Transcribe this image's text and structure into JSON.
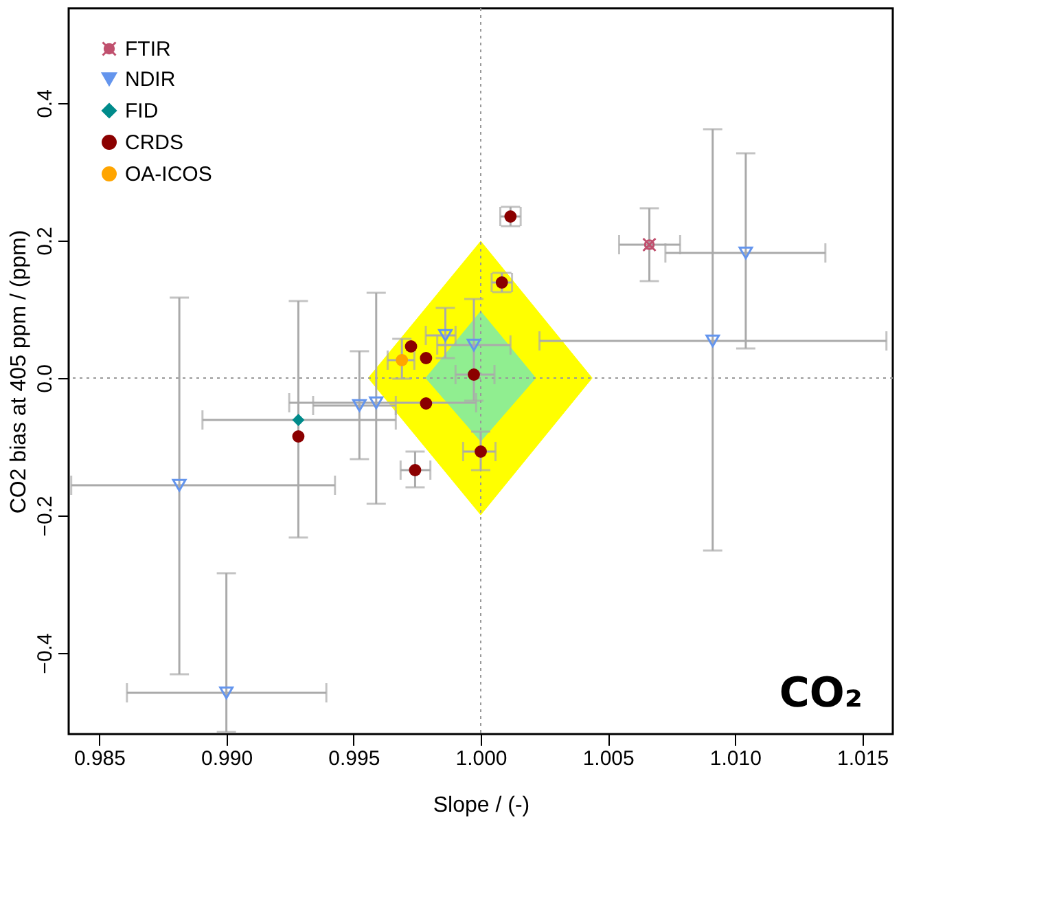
{
  "chart_data": {
    "type": "scatter",
    "xlabel": "Slope / (-)",
    "ylabel": "CO2 bias at 405 ppm / (ppm)",
    "xlim": [
      0.9838,
      1.0162
    ],
    "ylim": [
      -0.518,
      0.538
    ],
    "xticks": [
      0.985,
      {
        "value": 0.99,
        "label": "0.990"
      },
      0.995,
      {
        "value": 1.0,
        "label": "1.000"
      },
      1.005,
      {
        "value": 1.01,
        "label": "1.010"
      },
      1.015
    ],
    "yticks": [
      -0.4,
      -0.2,
      {
        "value": 0,
        "label": "0.0"
      },
      0.2,
      0.4
    ],
    "legend": "top left",
    "grid": false,
    "ref_lines": [
      {
        "axis": "x",
        "value": 1.0,
        "line_style": "dotted",
        "color": "#999999"
      },
      {
        "axis": "y",
        "value": 0.0,
        "line_style": "dotted",
        "color": "#999999"
      }
    ],
    "annotations": [
      "CO₂"
    ],
    "series": [
      {
        "type": "area",
        "color": "#ffff00",
        "x": [
          0.99558,
          1.0,
          1.00438,
          1.0,
          0.99558
        ],
        "values": [
          0,
          0.199,
          0,
          -0.199,
          0
        ]
      },
      {
        "type": "area",
        "color": "#90ee90",
        "x": [
          0.99784,
          1.0,
          1.00216,
          1.0,
          0.99784
        ],
        "values": [
          0,
          0.097,
          0,
          -0.092,
          0
        ]
      },
      {
        "name": "FTIR",
        "color": "#c0506e",
        "marker": "cross",
        "x": [
          1.00663
        ],
        "values": [
          0.194
        ],
        "xerrors": [
          [
            1.00544,
            1.00784
          ]
        ],
        "errors": [
          [
            0.141,
            0.247
          ]
        ]
      },
      {
        "name": "NDIR",
        "color": "#6495ed",
        "marker": "triangle",
        "x": [
          1.01042,
          1.00912,
          0.98815,
          0.99,
          0.99523,
          0.99589,
          0.99861,
          0.99973
        ],
        "values": [
          0.182,
          0.054,
          -0.156,
          -0.458,
          -0.04,
          -0.036,
          0.062,
          0.048
        ],
        "xerrors": [
          [
            1.00726,
            1.01355
          ],
          [
            1.00231,
            1.01595
          ],
          [
            0.9839,
            0.99427
          ],
          [
            0.98609,
            0.99393
          ],
          [
            0.99341,
            0.99666
          ],
          [
            0.99247,
            0.99982
          ],
          [
            0.99784,
            0.99901
          ],
          [
            0.99829,
            1.00117
          ]
        ],
        "errors": [
          [
            0.043,
            0.327
          ],
          [
            -0.251,
            0.362
          ],
          [
            -0.431,
            0.117
          ],
          [
            -0.515,
            -0.284
          ],
          [
            -0.118,
            0.039
          ],
          [
            -0.183,
            0.124
          ],
          [
            0.029,
            0.102
          ],
          [
            -0.033,
            0.115
          ]
        ]
      },
      {
        "name": "FID",
        "color": "#008b8b",
        "marker": "diamond",
        "x": [
          0.99283
        ],
        "values": [
          -0.061
        ],
        "xerrors": [
          [
            0.98906,
            0.99666
          ]
        ],
        "errors": [
          [
            -0.232,
            0.112
          ]
        ]
      },
      {
        "name": "CRDS",
        "color": "#8b0000",
        "marker": "circle",
        "x": [
          1.00117,
          1.00083,
          0.99726,
          0.99785,
          0.99973,
          0.99785,
          1.0,
          0.99742,
          0.99283
        ],
        "values": [
          0.235,
          0.139,
          0.046,
          0.029,
          0.005,
          -0.037,
          -0.107,
          -0.134,
          -0.085
        ],
        "xerrors": [
          [
            1.00077,
            1.00157
          ],
          [
            1.00043,
            1.00123
          ],
          null,
          null,
          [
            0.99901,
            1.00054
          ],
          null,
          [
            0.99931,
            1.00058
          ],
          [
            0.99685,
            0.99802
          ],
          null
        ],
        "errors": [
          [
            0.221,
            0.249
          ],
          [
            0.125,
            0.153
          ],
          null,
          null,
          null,
          null,
          [
            -0.134,
            -0.078
          ],
          [
            -0.159,
            -0.107
          ],
          null
        ]
      },
      {
        "name": "OA-ICOS",
        "color": "#ffa500",
        "marker": "circle",
        "x": [
          0.9969
        ],
        "values": [
          0.026
        ],
        "xerrors": [
          [
            0.99634,
            0.99739
          ]
        ],
        "errors": [
          [
            -0.001,
            0.057
          ]
        ]
      }
    ]
  }
}
